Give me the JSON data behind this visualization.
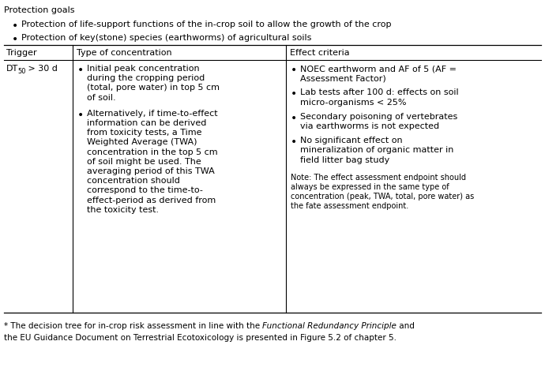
{
  "title_header": "Protection goals",
  "bullets_header": [
    "Protection of life-support functions of the in-crop soil to allow the growth of the crop",
    "Protection of key(stone) species (earthworms) of agricultural soils"
  ],
  "col_headers": [
    "Trigger",
    "Type of concentration",
    "Effect criteria"
  ],
  "toc_bullet1_lines": [
    "Initial peak concentration",
    "during the cropping period",
    "(total, pore water) in top 5 cm",
    "of soil."
  ],
  "toc_bullet2_lines": [
    "Alternatively, if time-to-effect",
    "information can be derived",
    "from toxicity tests, a Time",
    "Weighted Average (TWA)",
    "concentration in the top 5 cm",
    "of soil might be used. The",
    "averaging period of this TWA",
    "concentration should",
    "correspond to the time-to-",
    "effect-period as derived from",
    "the toxicity test."
  ],
  "ec_bullet1_lines": [
    "NOEC earthworm and AF of 5 (AF =",
    "Assessment Factor)"
  ],
  "ec_bullet2_lines": [
    "Lab tests after 100 d: effects on soil",
    "micro-organisms < 25%"
  ],
  "ec_bullet3_lines": [
    "Secondary poisoning of vertebrates",
    "via earthworms is not expected"
  ],
  "ec_bullet4_lines": [
    "No significant effect on",
    "mineralization of organic matter in",
    "field litter bag study"
  ],
  "note_lines": [
    "Note: The effect assessment endpoint should",
    "always be expressed in the same type of",
    "concentration (peak, TWA, total, pore water) as",
    "the fate assessment endpoint."
  ],
  "footnote_pre": "* The decision tree for in-crop risk assessment in line with the ",
  "footnote_italic": "Functional Redundancy Principle",
  "footnote_post": " and",
  "footnote_line2": "the EU Guidance Document on Terrestrial Ecotoxicology is presented in Figure 5.2 of chapter 5.",
  "bg_color": "#ffffff",
  "text_color": "#000000",
  "line_color": "#000000",
  "font_size": 8.0,
  "note_font_size": 7.0,
  "footnote_font_size": 7.5
}
